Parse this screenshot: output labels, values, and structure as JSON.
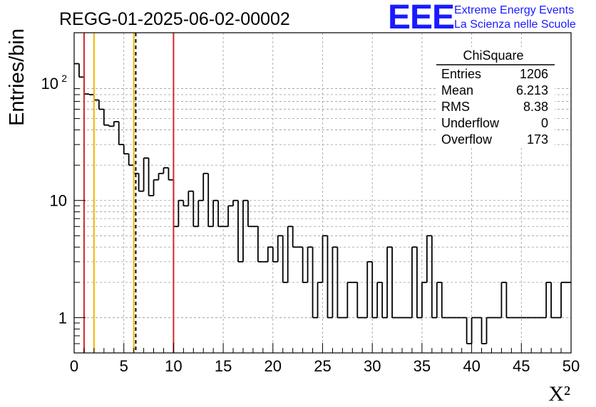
{
  "chart_data": {
    "type": "histogram",
    "title": "REGG-01-2025-06-02-00002",
    "xlabel": "X²",
    "ylabel": "Entries/bin",
    "xlim": [
      0,
      50
    ],
    "ylim": [
      0.5,
      270
    ],
    "y_scale": "log",
    "grid": true,
    "bin_width": 0.5,
    "x_ticks": [
      0,
      5,
      10,
      15,
      20,
      25,
      30,
      35,
      40,
      45,
      50
    ],
    "y_ticks": [
      {
        "value": 1,
        "label": "1"
      },
      {
        "value": 10,
        "label": "10"
      },
      {
        "value": 100,
        "label": "10",
        "sup": "2"
      }
    ],
    "bin_counts": [
      147,
      113,
      81,
      80,
      72,
      60,
      44,
      43,
      47,
      30,
      25,
      20,
      17,
      12,
      23,
      11,
      15,
      17,
      19,
      15,
      6,
      10,
      9,
      12,
      6,
      10,
      17,
      6,
      10,
      6,
      6,
      9,
      10,
      3,
      10,
      6,
      6,
      3,
      3,
      4,
      3,
      5,
      2,
      6,
      4,
      4,
      2,
      4,
      1,
      2,
      5,
      1,
      4,
      1,
      1,
      2,
      2,
      1,
      1,
      3,
      1,
      2,
      1,
      4,
      1,
      1,
      1,
      1,
      4,
      1,
      2,
      5,
      1,
      2,
      1,
      1,
      1,
      1,
      1,
      0.6,
      1,
      1,
      0.6,
      1,
      1,
      1,
      2,
      1,
      1,
      1,
      1,
      1,
      1,
      1,
      1,
      2,
      1,
      1,
      2,
      2
    ],
    "vertical_lines": [
      {
        "x": 1,
        "color": "#d62728",
        "style": "solid"
      },
      {
        "x": 2,
        "color": "#f0b800",
        "style": "solid"
      },
      {
        "x": 6,
        "color": "#f0b800",
        "style": "solid"
      },
      {
        "x": 6.2,
        "color": "#000000",
        "style": "dashed"
      },
      {
        "x": 10,
        "color": "#d62728",
        "style": "solid"
      }
    ],
    "stats": {
      "title": "ChiSquare",
      "rows": [
        {
          "label": "Entries",
          "value": "1206"
        },
        {
          "label": "Mean",
          "value": "6.213"
        },
        {
          "label": "RMS",
          "value": "8.38"
        },
        {
          "label": "Underflow",
          "value": "0"
        },
        {
          "label": "Overflow",
          "value": "173"
        }
      ]
    }
  },
  "logo": {
    "text": "EEE",
    "line1": "Extreme Energy Events",
    "line2": "La Scienza nelle Scuole",
    "color": "#1a1aff"
  }
}
